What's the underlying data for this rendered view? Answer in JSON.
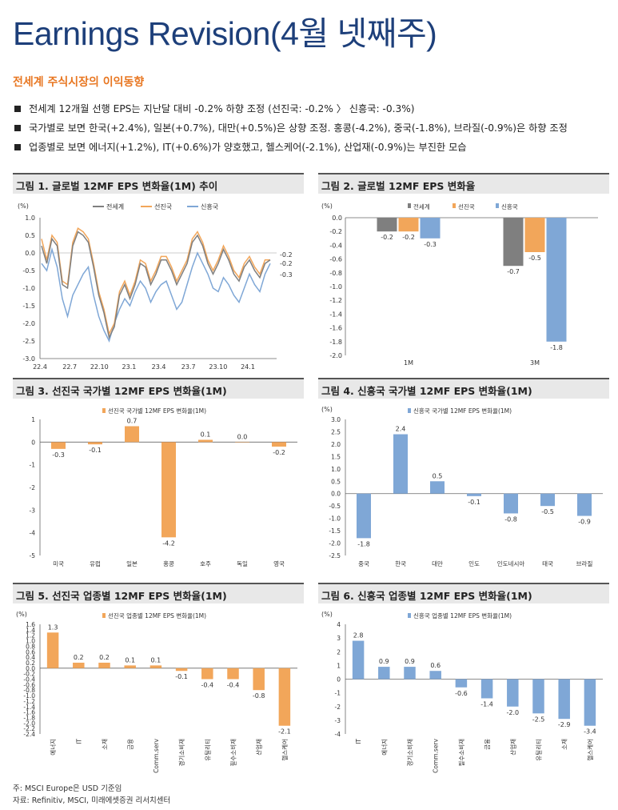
{
  "page": {
    "title": "Earnings Revision(4월 넷째주)",
    "section_title": "전세계 주식시장의 이익동향",
    "bullets": [
      "전세계 12개월 선행 EPS는 지난달 대비 -0.2% 하향 조정 (선진국: -0.2% 〉 신흥국: -0.3%)",
      "국가별로 보면 한국(+2.4%), 일본(+0.7%), 대만(+0.5%)은 상향 조정. 홍콩(-4.2%), 중국(-1.8%), 브라질(-0.9%)은 하향 조정",
      "업종별로 보면 에너지(+1.2%), IT(+0.6%)가 양호했고, 헬스케어(-2.1%), 산업재(-0.9%)는 부진한 모습"
    ],
    "footnotes": [
      "주: MSCI Europe은 USD 기준임",
      "자료: Refinitiv, MSCI, 미래에셋증권 리서치센터"
    ],
    "colors": {
      "world": "#7f7f7f",
      "dm": "#f2a65a",
      "em": "#7fa7d6",
      "title": "#1d3f7a",
      "accent": "#e87722"
    }
  },
  "chart_data": [
    {
      "type": "line",
      "title": "그림 1. 글로벌 12MF EPS 변화율(1M) 추이",
      "unit": "(%)",
      "x_ticks": [
        "22.4",
        "22.7",
        "22.10",
        "23.1",
        "23.4",
        "23.7",
        "23.10",
        "24.1"
      ],
      "ylim": [
        -3.0,
        1.0
      ],
      "y_ticks": [
        "1.0",
        "0.5",
        "0.0",
        "-0.5",
        "-1.0",
        "-1.5",
        "-2.0",
        "-2.5",
        "-3.0"
      ],
      "end_labels": [
        "-0.2",
        "-0.2",
        "-0.3"
      ],
      "series": [
        {
          "name": "전세계",
          "values": [
            0.2,
            -0.3,
            0.4,
            0.2,
            -0.9,
            -1.0,
            0.2,
            0.6,
            0.5,
            0.3,
            -0.4,
            -1.2,
            -1.7,
            -2.4,
            -2.1,
            -1.2,
            -0.9,
            -1.3,
            -0.9,
            -0.3,
            -0.4,
            -0.9,
            -0.6,
            -0.2,
            -0.2,
            -0.5,
            -0.9,
            -0.6,
            -0.3,
            0.3,
            0.5,
            0.2,
            -0.3,
            -0.6,
            -0.3,
            0.1,
            -0.2,
            -0.6,
            -0.8,
            -0.4,
            -0.2,
            -0.5,
            -0.7,
            -0.3,
            -0.2
          ]
        },
        {
          "name": "선진국",
          "values": [
            0.4,
            -0.2,
            0.5,
            0.3,
            -0.8,
            -0.9,
            0.3,
            0.7,
            0.6,
            0.4,
            -0.3,
            -1.1,
            -1.6,
            -2.3,
            -2.0,
            -1.1,
            -0.8,
            -1.2,
            -0.8,
            -0.2,
            -0.3,
            -0.8,
            -0.5,
            -0.1,
            -0.1,
            -0.4,
            -0.8,
            -0.5,
            -0.2,
            0.4,
            0.6,
            0.3,
            -0.2,
            -0.5,
            -0.2,
            0.2,
            -0.1,
            -0.5,
            -0.7,
            -0.3,
            -0.1,
            -0.4,
            -0.6,
            -0.2,
            -0.2
          ]
        },
        {
          "name": "신흥국",
          "values": [
            -0.3,
            -0.5,
            0.1,
            -0.4,
            -1.3,
            -1.8,
            -1.2,
            -0.9,
            -0.6,
            -0.4,
            -1.2,
            -1.8,
            -2.2,
            -2.5,
            -2.0,
            -1.6,
            -1.3,
            -1.5,
            -1.1,
            -0.8,
            -1.0,
            -1.4,
            -1.1,
            -0.9,
            -0.8,
            -1.2,
            -1.6,
            -1.4,
            -0.9,
            -0.4,
            0.0,
            -0.3,
            -0.6,
            -1.0,
            -1.1,
            -0.7,
            -0.9,
            -1.2,
            -1.4,
            -1.0,
            -0.6,
            -0.9,
            -1.1,
            -0.6,
            -0.3
          ]
        }
      ]
    },
    {
      "type": "bar",
      "title": "그림 2. 글로벌 12MF EPS 변화율",
      "unit": "(%)",
      "categories": [
        "1M",
        "3M"
      ],
      "ylim": [
        -2.0,
        0.0
      ],
      "y_ticks": [
        "0.0",
        "-0.2",
        "-0.4",
        "-0.6",
        "-0.8",
        "-1.0",
        "-1.2",
        "-1.4",
        "-1.6",
        "-1.8",
        "-2.0"
      ],
      "series": [
        {
          "name": "전세계",
          "values": [
            -0.2,
            -0.7
          ]
        },
        {
          "name": "선진국",
          "values": [
            -0.2,
            -0.5
          ]
        },
        {
          "name": "신흥국",
          "values": [
            -0.3,
            -1.8
          ]
        }
      ]
    },
    {
      "type": "bar",
      "title": "그림 3. 선진국 국가별 12MF EPS 변화율(1M)",
      "unit": "",
      "legend": "선진국 국가별 12MF EPS 변화율(1M)",
      "categories": [
        "미국",
        "유럽",
        "일본",
        "홍콩",
        "호주",
        "독일",
        "영국"
      ],
      "values": [
        -0.3,
        -0.1,
        0.7,
        -4.2,
        0.1,
        0.0,
        -0.2
      ],
      "labels": [
        "-0.3",
        "-0.1",
        "0.7",
        "-4.2",
        "0.1",
        "0.0",
        "-0.2"
      ],
      "ylim": [
        -5,
        1
      ],
      "y_ticks": [
        "1",
        "0",
        "-1",
        "-2",
        "-3",
        "-4",
        "-5"
      ]
    },
    {
      "type": "bar",
      "title": "그림 4. 신흥국 국가별 12MF EPS 변화율(1M)",
      "unit": "(%)",
      "legend": "신흥국 국가별 12MF EPS 변화율(1M)",
      "categories": [
        "중국",
        "한국",
        "대만",
        "인도",
        "인도네시아",
        "태국",
        "브라질"
      ],
      "values": [
        -1.8,
        2.4,
        0.5,
        -0.1,
        -0.8,
        -0.5,
        -0.9
      ],
      "labels": [
        "-1.8",
        "2.4",
        "0.5",
        "-0.1",
        "-0.8",
        "-0.5",
        "-0.9"
      ],
      "ylim": [
        -2.5,
        3.0
      ],
      "y_ticks": [
        "3.0",
        "2.5",
        "2.0",
        "1.5",
        "1.0",
        "0.5",
        "0.0",
        "-0.5",
        "-1.0",
        "-1.5",
        "-2.0",
        "-2.5"
      ]
    },
    {
      "type": "bar",
      "title": "그림 5. 선진국 업종별 12MF EPS 변화율(1M)",
      "unit": "(%)",
      "legend": "선진국 업종별 12MF EPS 변화율(1M)",
      "categories": [
        "에너지",
        "IT",
        "소재",
        "금융",
        "Comm.serv",
        "경기소비재",
        "유틸리티",
        "필수소비재",
        "산업재",
        "헬스케어"
      ],
      "values": [
        1.3,
        0.2,
        0.2,
        0.1,
        0.1,
        -0.1,
        -0.4,
        -0.4,
        -0.8,
        -2.1
      ],
      "labels": [
        "1.3",
        "0.2",
        "0.2",
        "0.1",
        "0.1",
        "-0.1",
        "-0.4",
        "-0.4",
        "-0.8",
        "-2.1"
      ],
      "ylim": [
        -2.4,
        1.6
      ],
      "y_ticks": [
        "1.6",
        "1.4",
        "1.2",
        "1.0",
        "0.8",
        "0.6",
        "0.4",
        "0.2",
        "0.0",
        "-0.2",
        "-0.4",
        "-0.6",
        "-0.8",
        "-1.0",
        "-1.2",
        "-1.4",
        "-1.6",
        "-1.8",
        "-2.0",
        "-2.2",
        "-2.4"
      ]
    },
    {
      "type": "bar",
      "title": "그림 6. 신흥국 업종별 12MF EPS 변화율(1M)",
      "unit": "(%)",
      "legend": "신흥국 업종별 12MF EPS 변화율(1M)",
      "categories": [
        "IT",
        "에너지",
        "경기소비재",
        "Comm.serv",
        "필수소비재",
        "금융",
        "산업재",
        "유틸리티",
        "소재",
        "헬스케어"
      ],
      "values": [
        2.8,
        0.9,
        0.9,
        0.6,
        -0.6,
        -1.4,
        -2.0,
        -2.5,
        -2.9,
        -3.4
      ],
      "labels": [
        "2.8",
        "0.9",
        "0.9",
        "0.6",
        "-0.6",
        "-1.4",
        "-2.0",
        "-2.5",
        "-2.9",
        "-3.4"
      ],
      "ylim": [
        -4,
        4
      ],
      "y_ticks": [
        "4",
        "3",
        "2",
        "1",
        "0",
        "-1",
        "-2",
        "-3",
        "-4"
      ]
    }
  ]
}
